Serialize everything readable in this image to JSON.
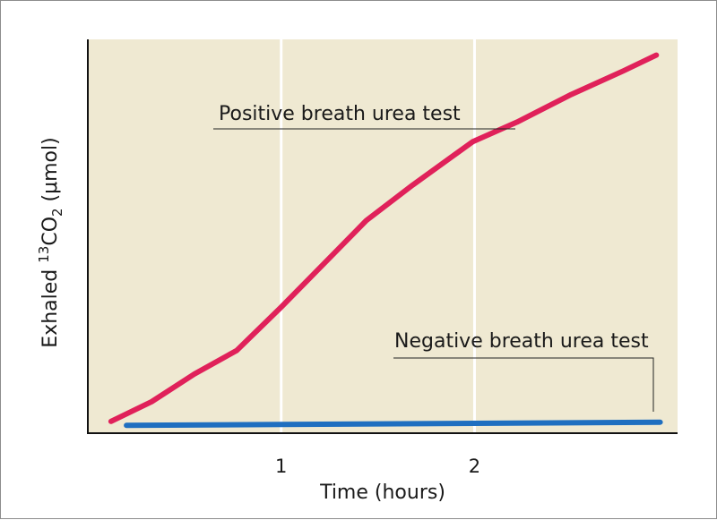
{
  "chart_data": {
    "type": "line",
    "xlabel": "Time (hours)",
    "ylabel": {
      "prefix": "Exhaled ",
      "superscript": "13",
      "molecule": "CO",
      "subscript": "2",
      "suffix": " (μmol)"
    },
    "x_ticks": [
      {
        "value": 1,
        "label": "1"
      },
      {
        "value": 2,
        "label": "2"
      }
    ],
    "xlim": [
      0,
      3.05
    ],
    "ylim": [
      0,
      100
    ],
    "grid": {
      "vertical_at": [
        1,
        2
      ],
      "color": "#ffffff"
    },
    "background_color": "#efe9d2",
    "series": [
      {
        "name": "Positive breath urea test",
        "color": "#e0215a",
        "points": [
          {
            "x": 0.12,
            "y": 3
          },
          {
            "x": 0.33,
            "y": 8
          },
          {
            "x": 0.55,
            "y": 15
          },
          {
            "x": 0.77,
            "y": 21
          },
          {
            "x": 1.0,
            "y": 32
          },
          {
            "x": 1.22,
            "y": 43
          },
          {
            "x": 1.44,
            "y": 54
          },
          {
            "x": 1.68,
            "y": 63
          },
          {
            "x": 1.99,
            "y": 74
          },
          {
            "x": 2.22,
            "y": 79
          },
          {
            "x": 2.5,
            "y": 86
          },
          {
            "x": 2.77,
            "y": 92
          },
          {
            "x": 2.94,
            "y": 96
          }
        ]
      },
      {
        "name": "Negative breath urea test",
        "color": "#1f6fc0",
        "points": [
          {
            "x": 0.2,
            "y": 2
          },
          {
            "x": 1.0,
            "y": 2.2
          },
          {
            "x": 2.0,
            "y": 2.5
          },
          {
            "x": 2.96,
            "y": 2.8
          }
        ]
      }
    ]
  }
}
